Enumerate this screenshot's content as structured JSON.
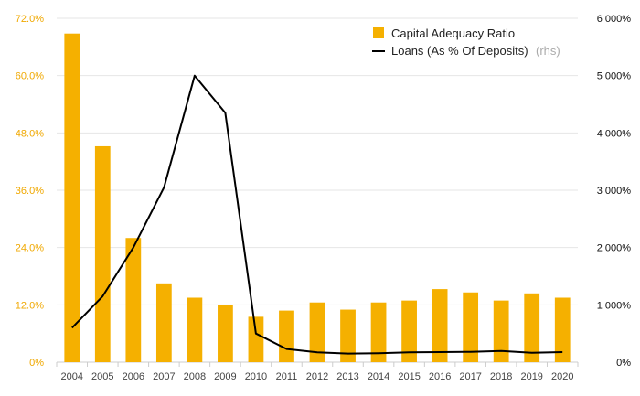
{
  "chart_data": {
    "type": "bar+line",
    "categories": [
      "2004",
      "2005",
      "2006",
      "2007",
      "2008",
      "2009",
      "2010",
      "2011",
      "2012",
      "2013",
      "2014",
      "2015",
      "2016",
      "2017",
      "2018",
      "2019",
      "2020"
    ],
    "series": [
      {
        "name": "Capital Adequacy Ratio",
        "type": "bar",
        "axis": "left",
        "color": "#f5b000",
        "values": [
          68.8,
          45.2,
          26.0,
          16.5,
          13.5,
          12.0,
          9.5,
          10.8,
          12.5,
          11.0,
          12.5,
          12.9,
          15.3,
          14.6,
          12.9,
          14.4,
          13.5
        ]
      },
      {
        "name": "Loans (As % Of Deposits)",
        "axis_note": "(rhs)",
        "type": "line",
        "axis": "right",
        "color": "#000000",
        "values": [
          600,
          1150,
          2000,
          3050,
          5000,
          4350,
          500,
          230,
          170,
          150,
          155,
          170,
          175,
          180,
          195,
          165,
          175
        ]
      }
    ],
    "left_axis": {
      "ylim": [
        0,
        72
      ],
      "ticks": [
        0,
        12,
        24,
        36,
        48,
        60,
        72
      ],
      "tick_labels": [
        "0%",
        "12.0%",
        "24.0%",
        "36.0%",
        "48.0%",
        "60.0%",
        "72.0%"
      ],
      "color": "#f0a800"
    },
    "right_axis": {
      "ylim": [
        0,
        6000
      ],
      "ticks": [
        0,
        1000,
        2000,
        3000,
        4000,
        5000,
        6000
      ],
      "tick_labels": [
        "0%",
        "1 000%",
        "2 000%",
        "3 000%",
        "4 000%",
        "5 000%",
        "6 000%"
      ],
      "color": "#111111"
    },
    "grid": true,
    "legend_position": "top-right"
  }
}
